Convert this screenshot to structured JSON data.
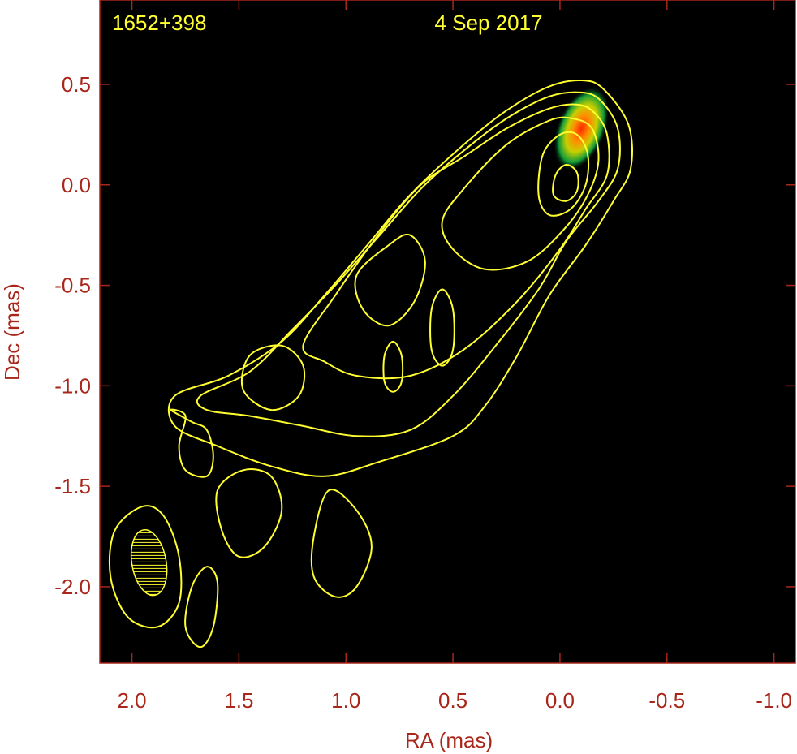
{
  "chart_data": {
    "type": "heatmap",
    "source_label": "1652+398",
    "date_label": "4 Sep 2017",
    "xlabel": "RA (mas)",
    "ylabel": "Dec (mas)",
    "xlim": [
      2.15,
      -1.1
    ],
    "ylim": [
      -2.38,
      0.92
    ],
    "xticks": [
      2.0,
      1.5,
      1.0,
      0.5,
      0.0,
      -0.5,
      -1.0
    ],
    "xtick_labels": [
      "2.0",
      "1.5",
      "1.0",
      "0.5",
      "0.0",
      "-0.5",
      "-1.0"
    ],
    "yticks": [
      0.5,
      0.0,
      -0.5,
      -1.0,
      -1.5,
      -2.0
    ],
    "ytick_labels": [
      "0.5",
      "0.0",
      "-0.5",
      "-1.0",
      "-1.5",
      "-2.0"
    ],
    "grid": false,
    "background_color": "#000000",
    "contour_color": "#ffff30",
    "axis_color": "#a8261a",
    "intensity_peak": {
      "ra": -0.1,
      "dec": 0.28
    },
    "beam": {
      "ra": 1.92,
      "dec": -1.88,
      "major_mas": 0.33,
      "minor_mas": 0.16,
      "pa_deg": -10
    },
    "contours": [
      {
        "level": 1,
        "points": [
          [
            1.8,
            -1.05
          ],
          [
            1.55,
            -0.95
          ],
          [
            1.3,
            -0.78
          ],
          [
            1.1,
            -0.55
          ],
          [
            0.9,
            -0.3
          ],
          [
            0.7,
            -0.05
          ],
          [
            0.45,
            0.2
          ],
          [
            0.25,
            0.37
          ],
          [
            0.05,
            0.49
          ],
          [
            -0.1,
            0.52
          ],
          [
            -0.2,
            0.48
          ],
          [
            -0.32,
            0.3
          ],
          [
            -0.33,
            0.08
          ],
          [
            -0.25,
            -0.08
          ],
          [
            -0.12,
            -0.3
          ],
          [
            0.05,
            -0.55
          ],
          [
            0.2,
            -0.85
          ],
          [
            0.35,
            -1.1
          ],
          [
            0.5,
            -1.25
          ],
          [
            0.85,
            -1.38
          ],
          [
            1.1,
            -1.45
          ],
          [
            1.35,
            -1.4
          ],
          [
            1.6,
            -1.3
          ],
          [
            1.8,
            -1.2
          ]
        ]
      },
      {
        "level": 2,
        "points": [
          [
            1.68,
            -1.05
          ],
          [
            1.45,
            -0.93
          ],
          [
            1.25,
            -0.72
          ],
          [
            1.05,
            -0.5
          ],
          [
            0.85,
            -0.26
          ],
          [
            0.65,
            -0.02
          ],
          [
            0.45,
            0.17
          ],
          [
            0.25,
            0.33
          ],
          [
            0.05,
            0.44
          ],
          [
            -0.1,
            0.46
          ],
          [
            -0.19,
            0.42
          ],
          [
            -0.27,
            0.28
          ],
          [
            -0.27,
            0.08
          ],
          [
            -0.18,
            -0.08
          ],
          [
            -0.03,
            -0.28
          ],
          [
            0.1,
            -0.52
          ],
          [
            0.3,
            -0.8
          ],
          [
            0.5,
            -1.05
          ],
          [
            0.7,
            -1.22
          ],
          [
            0.95,
            -1.25
          ],
          [
            1.2,
            -1.2
          ],
          [
            1.45,
            -1.15
          ],
          [
            1.65,
            -1.12
          ]
        ]
      },
      {
        "level": 3,
        "points": [
          [
            1.2,
            -0.8
          ],
          [
            1.05,
            -0.55
          ],
          [
            0.85,
            -0.25
          ],
          [
            0.65,
            0.0
          ],
          [
            0.45,
            0.14
          ],
          [
            0.25,
            0.28
          ],
          [
            0.05,
            0.38
          ],
          [
            -0.08,
            0.4
          ],
          [
            -0.16,
            0.36
          ],
          [
            -0.22,
            0.25
          ],
          [
            -0.22,
            0.05
          ],
          [
            -0.12,
            -0.12
          ],
          [
            0.0,
            -0.32
          ],
          [
            0.2,
            -0.58
          ],
          [
            0.45,
            -0.82
          ],
          [
            0.7,
            -0.95
          ],
          [
            0.95,
            -0.95
          ],
          [
            1.1,
            -0.88
          ]
        ]
      },
      {
        "level": 4,
        "points": [
          [
            0.55,
            -0.18
          ],
          [
            0.45,
            -0.02
          ],
          [
            0.25,
            0.2
          ],
          [
            0.05,
            0.32
          ],
          [
            -0.06,
            0.33
          ],
          [
            -0.15,
            0.28
          ],
          [
            -0.18,
            0.12
          ],
          [
            -0.13,
            -0.05
          ],
          [
            -0.02,
            -0.22
          ],
          [
            0.15,
            -0.38
          ],
          [
            0.35,
            -0.42
          ],
          [
            0.5,
            -0.32
          ]
        ]
      },
      {
        "level": 5,
        "points": [
          [
            0.1,
            -0.05
          ],
          [
            0.08,
            0.15
          ],
          [
            0.0,
            0.25
          ],
          [
            -0.08,
            0.25
          ],
          [
            -0.13,
            0.15
          ],
          [
            -0.12,
            0.0
          ],
          [
            -0.05,
            -0.12
          ],
          [
            0.05,
            -0.15
          ]
        ]
      },
      {
        "level": 6,
        "points": [
          [
            0.03,
            -0.05
          ],
          [
            0.02,
            0.05
          ],
          [
            -0.03,
            0.1
          ],
          [
            -0.08,
            0.06
          ],
          [
            -0.08,
            -0.03
          ],
          [
            -0.03,
            -0.08
          ]
        ]
      },
      {
        "level": 7,
        "points": [
          [
            1.45,
            -0.85
          ],
          [
            1.3,
            -0.8
          ],
          [
            1.2,
            -0.9
          ],
          [
            1.22,
            -1.05
          ],
          [
            1.35,
            -1.12
          ],
          [
            1.48,
            -1.02
          ]
        ]
      },
      {
        "level": 8,
        "points": [
          [
            0.8,
            -0.3
          ],
          [
            0.7,
            -0.25
          ],
          [
            0.63,
            -0.38
          ],
          [
            0.68,
            -0.58
          ],
          [
            0.8,
            -0.7
          ],
          [
            0.92,
            -0.62
          ],
          [
            0.95,
            -0.45
          ]
        ]
      },
      {
        "level": 9,
        "points": [
          [
            0.55,
            -0.52
          ],
          [
            0.5,
            -0.62
          ],
          [
            0.5,
            -0.82
          ],
          [
            0.55,
            -0.9
          ],
          [
            0.6,
            -0.82
          ],
          [
            0.6,
            -0.62
          ]
        ]
      },
      {
        "level": 10,
        "points": [
          [
            0.78,
            -0.78
          ],
          [
            0.74,
            -0.85
          ],
          [
            0.74,
            -0.98
          ],
          [
            0.78,
            -1.03
          ],
          [
            0.82,
            -0.98
          ],
          [
            0.82,
            -0.85
          ]
        ]
      },
      {
        "level": 11,
        "points": [
          [
            1.82,
            -1.12
          ],
          [
            1.75,
            -1.15
          ],
          [
            1.78,
            -1.3
          ],
          [
            1.75,
            -1.42
          ],
          [
            1.65,
            -1.45
          ],
          [
            1.62,
            -1.35
          ],
          [
            1.65,
            -1.22
          ],
          [
            1.72,
            -1.18
          ]
        ]
      },
      {
        "level": 12,
        "points": [
          [
            1.48,
            -1.42
          ],
          [
            1.35,
            -1.45
          ],
          [
            1.3,
            -1.62
          ],
          [
            1.38,
            -1.8
          ],
          [
            1.5,
            -1.85
          ],
          [
            1.58,
            -1.72
          ],
          [
            1.6,
            -1.52
          ]
        ]
      },
      {
        "level": 13,
        "points": [
          [
            1.08,
            -1.52
          ],
          [
            0.95,
            -1.62
          ],
          [
            0.88,
            -1.8
          ],
          [
            0.95,
            -2.0
          ],
          [
            1.05,
            -2.05
          ],
          [
            1.15,
            -1.95
          ],
          [
            1.15,
            -1.75
          ]
        ]
      },
      {
        "level": 14,
        "points": [
          [
            1.95,
            -1.6
          ],
          [
            1.85,
            -1.65
          ],
          [
            1.78,
            -1.85
          ],
          [
            1.78,
            -2.08
          ],
          [
            1.88,
            -2.2
          ],
          [
            2.02,
            -2.15
          ],
          [
            2.1,
            -1.95
          ],
          [
            2.08,
            -1.72
          ]
        ]
      },
      {
        "level": 15,
        "points": [
          [
            1.65,
            -1.9
          ],
          [
            1.6,
            -1.98
          ],
          [
            1.62,
            -2.2
          ],
          [
            1.68,
            -2.3
          ],
          [
            1.75,
            -2.2
          ],
          [
            1.72,
            -2.0
          ]
        ]
      }
    ]
  }
}
